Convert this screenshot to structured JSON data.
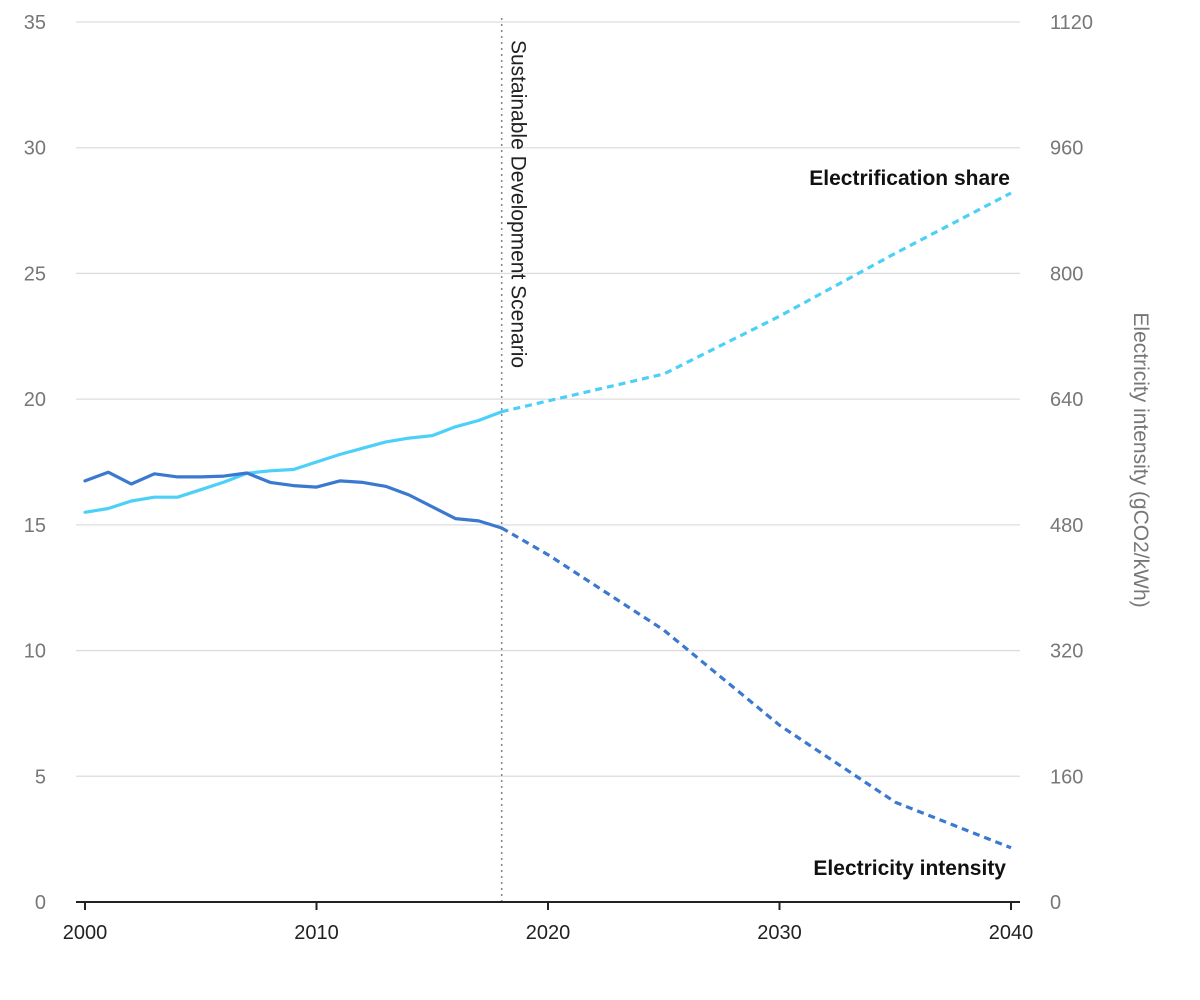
{
  "chart_data": {
    "type": "line",
    "x_range": [
      2000,
      2040
    ],
    "x_ticks": [
      2000,
      2010,
      2020,
      2030,
      2040
    ],
    "left_axis": {
      "label": "",
      "range": [
        0,
        35
      ],
      "ticks": [
        0,
        5,
        10,
        15,
        20,
        25,
        30,
        35
      ]
    },
    "right_axis": {
      "label": "Electricity intensity (gCO2/kWh)",
      "range": [
        0,
        1120
      ],
      "ticks": [
        0,
        160,
        320,
        480,
        640,
        800,
        960,
        1120
      ]
    },
    "annotation": {
      "label": "Sustainable Development Scenario",
      "x": 2018
    },
    "grid": "horizontal",
    "series": [
      {
        "name": "Electrification share",
        "axis": "left",
        "color": "#4dd0f8",
        "historical": {
          "x": [
            2000,
            2001,
            2002,
            2003,
            2004,
            2005,
            2006,
            2007,
            2008,
            2009,
            2010,
            2011,
            2012,
            2013,
            2014,
            2015,
            2016,
            2017,
            2018
          ],
          "y": [
            15.5,
            15.65,
            15.95,
            16.1,
            16.1,
            16.4,
            16.7,
            17.05,
            17.15,
            17.2,
            17.5,
            17.8,
            18.05,
            18.3,
            18.45,
            18.55,
            18.9,
            19.15,
            19.5
          ]
        },
        "projection": {
          "x": [
            2018,
            2025,
            2030,
            2035,
            2040
          ],
          "y": [
            19.5,
            21.0,
            23.3,
            25.8,
            28.2
          ]
        }
      },
      {
        "name": "Electricity intensity",
        "axis": "right",
        "color": "#3b78d0",
        "historical": {
          "x": [
            2000,
            2001,
            2002,
            2003,
            2004,
            2005,
            2006,
            2007,
            2008,
            2009,
            2010,
            2011,
            2012,
            2013,
            2014,
            2015,
            2016,
            2017,
            2018
          ],
          "y": [
            536,
            547,
            532,
            545,
            541,
            541,
            542,
            546,
            534,
            530,
            528,
            536,
            534,
            529,
            518,
            503,
            488,
            485,
            476
          ]
        },
        "projection": {
          "x": [
            2018,
            2020,
            2025,
            2030,
            2035,
            2040
          ],
          "y": [
            476,
            442,
            346,
            225,
            127,
            69
          ]
        }
      }
    ]
  }
}
